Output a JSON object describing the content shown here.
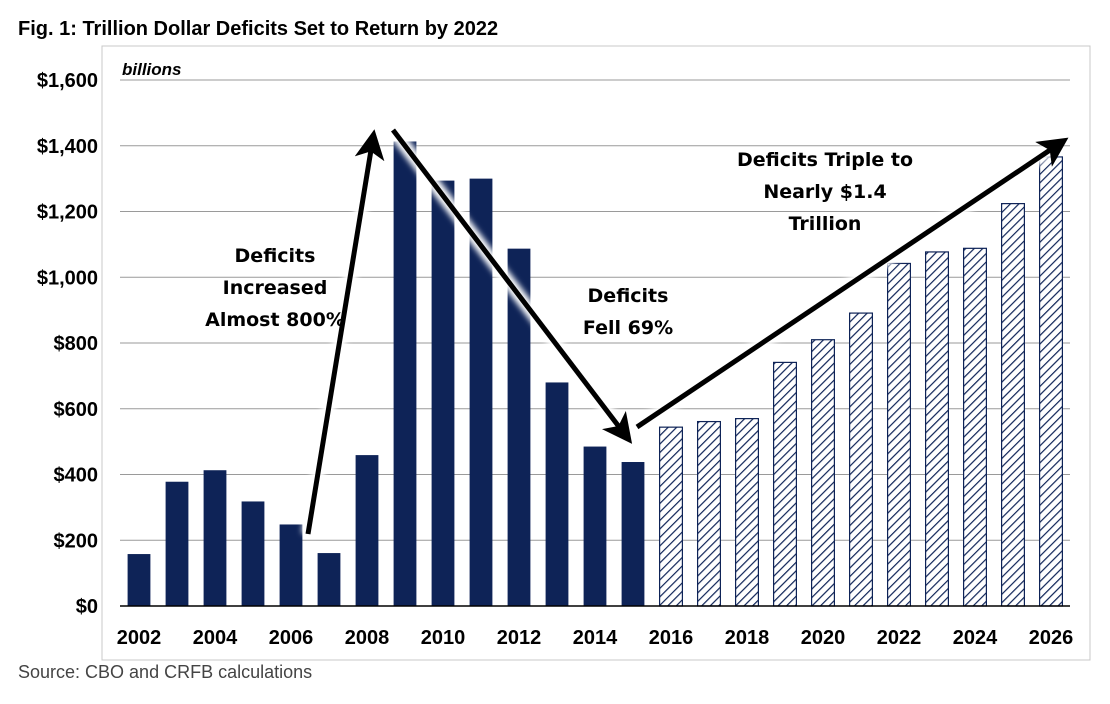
{
  "figure": {
    "title": "Fig. 1: Trillion Dollar Deficits Set to Return by 2022",
    "source": "Source: CBO and CRFB calculations"
  },
  "chart_data": {
    "type": "bar",
    "title": "Fig. 1: Trillion Dollar Deficits Set to Return by 2022",
    "units_label": "billions",
    "xlabel": "",
    "ylabel": "",
    "ylim": [
      0,
      1600
    ],
    "yticks": [
      0,
      200,
      400,
      600,
      800,
      1000,
      1200,
      1400,
      1600
    ],
    "ytick_labels": [
      "$0",
      "$200",
      "$400",
      "$600",
      "$800",
      "$1,000",
      "$1,200",
      "$1,400",
      "$1,600"
    ],
    "categories": [
      2002,
      2003,
      2004,
      2005,
      2006,
      2007,
      2008,
      2009,
      2010,
      2011,
      2012,
      2013,
      2014,
      2015,
      2016,
      2017,
      2018,
      2019,
      2020,
      2021,
      2022,
      2023,
      2024,
      2025,
      2026
    ],
    "xtick_labels": [
      "2002",
      "2004",
      "2006",
      "2008",
      "2010",
      "2012",
      "2014",
      "2016",
      "2018",
      "2020",
      "2022",
      "2024",
      "2026"
    ],
    "series": [
      {
        "values": [
          158,
          378,
          413,
          318,
          248,
          161,
          459,
          1413,
          1294,
          1300,
          1087,
          680,
          485,
          438,
          544,
          561,
          570,
          741,
          810,
          891,
          1042,
          1077,
          1088,
          1224,
          1366
        ],
        "actual_through": 2015,
        "color": "#0e2357",
        "projected_style": "diagonal-hatch"
      }
    ],
    "grid": true,
    "annotations": [
      {
        "lines": [
          "Deficits",
          "Increased",
          "Almost 800%"
        ]
      },
      {
        "lines": [
          "Deficits",
          "Fell 69%"
        ]
      },
      {
        "lines": [
          "Deficits Triple to",
          "Nearly $1.4",
          "Trillion"
        ]
      }
    ]
  }
}
